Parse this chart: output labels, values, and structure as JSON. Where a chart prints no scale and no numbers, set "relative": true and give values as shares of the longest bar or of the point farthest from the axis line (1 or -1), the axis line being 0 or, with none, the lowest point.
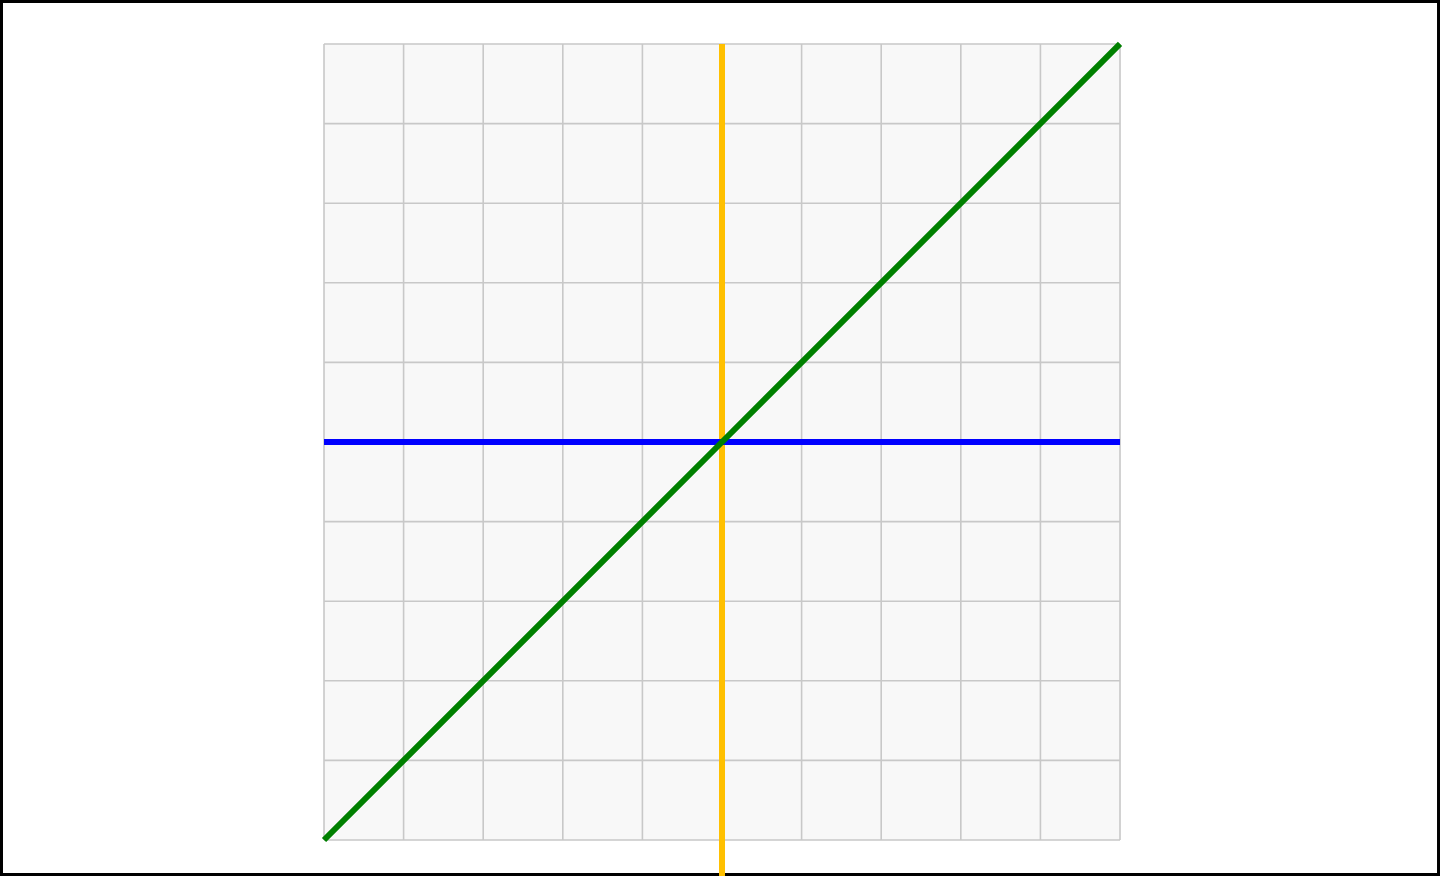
{
  "chart_data": {
    "type": "line",
    "relative": true,
    "categories": [
      null,
      null,
      null,
      null,
      null,
      null,
      null,
      null,
      null,
      null,
      null
    ],
    "series": [
      {
        "color": "#0000ff",
        "values": [
          0,
          0,
          0,
          0,
          0,
          0,
          0,
          0,
          0,
          0,
          0
        ]
      },
      {
        "color": "#008000",
        "values": [
          -1,
          -0.8,
          -0.6,
          -0.4,
          -0.2,
          0,
          0.2,
          0.4,
          0.6,
          0.8,
          1
        ]
      }
    ],
    "grid": true
  }
}
